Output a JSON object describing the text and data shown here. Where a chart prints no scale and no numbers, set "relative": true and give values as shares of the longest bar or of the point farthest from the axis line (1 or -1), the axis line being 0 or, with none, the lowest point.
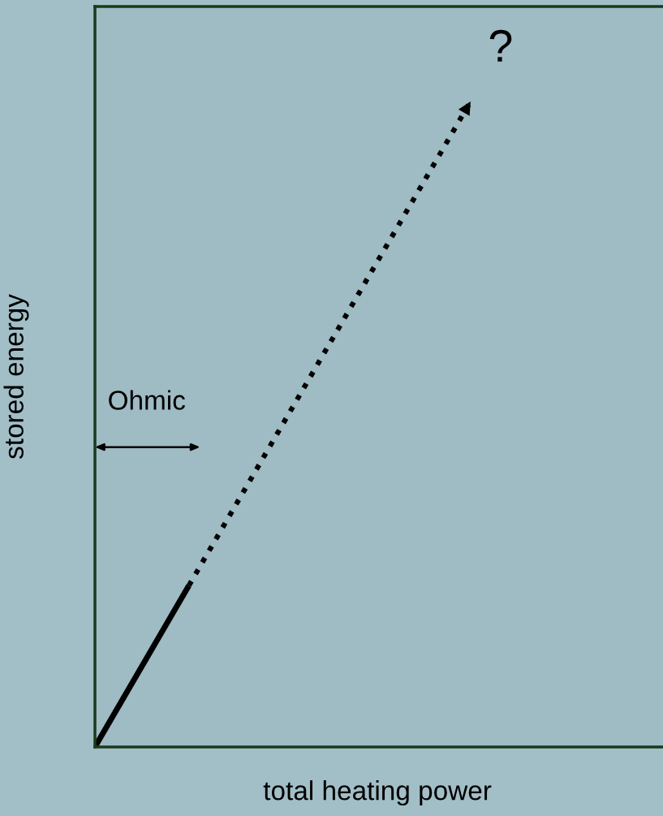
{
  "chart_data": {
    "type": "line",
    "relative": true,
    "xlabel": "total heating power",
    "ylabel": "stored energy",
    "categories": [
      null,
      null,
      null,
      null,
      null
    ],
    "series": [
      {
        "color": "#000000",
        "line_style": "dotted",
        "values": [
          null,
          0.25,
          0.5,
          0.75,
          1
        ]
      },
      {
        "color": "#000000",
        "line_style": "solid",
        "values": [
          0,
          0.25,
          null,
          null,
          null
        ]
      }
    ],
    "annotations": [
      "?",
      "Ohmic"
    ],
    "legend": false,
    "marker": "none"
  }
}
